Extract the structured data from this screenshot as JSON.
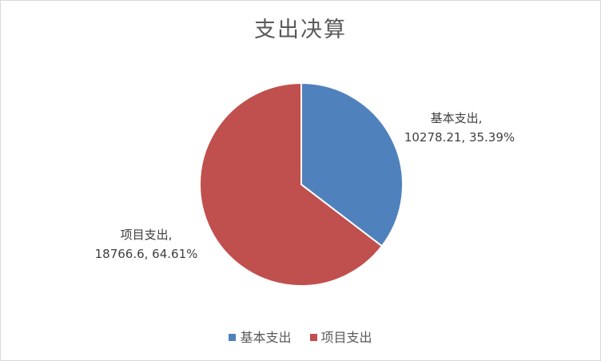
{
  "chart_data": {
    "type": "pie",
    "title": "支出决算",
    "slices": [
      {
        "name": "基本支出",
        "value": 10278.21,
        "percent": "35.39%",
        "color": "#4F81BD"
      },
      {
        "name": "项目支出",
        "value": 18766.6,
        "percent": "64.61%",
        "color": "#C0504D"
      }
    ],
    "legend_position": "bottom",
    "labels": {
      "slice_0_line1": "基本支出,",
      "slice_0_line2": "10278.21, 35.39%",
      "slice_1_line1": "项目支出,",
      "slice_1_line2": "18766.6, 64.61%"
    },
    "legend": [
      "基本支出",
      "项目支出"
    ]
  }
}
